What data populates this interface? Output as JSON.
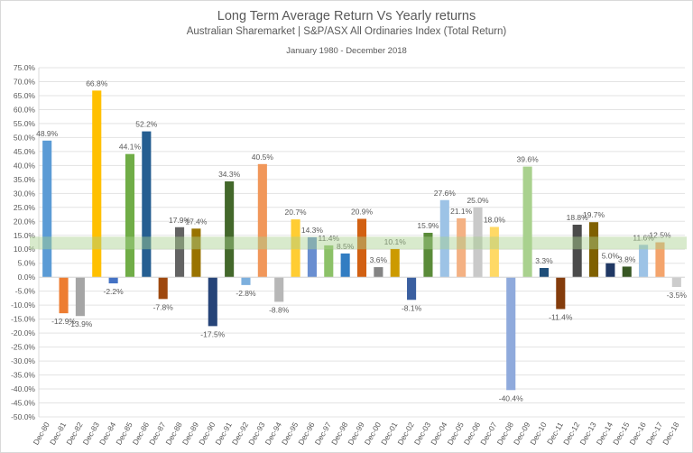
{
  "chart_data": {
    "type": "bar",
    "title": "Long Term Average Return Vs Yearly returns",
    "subtitle": "Australian Sharemarket  | S&P/ASX  All  Ordinaries Index (Total Return)",
    "period": "January 1980 - December  2018",
    "xlabel": "",
    "ylabel": "",
    "ylim": [
      -50,
      75
    ],
    "ytick_step": 5,
    "ytick_format": "percent-1dp",
    "grid": true,
    "legend": "none",
    "highlight_band": {
      "from": 10,
      "to": 14.5,
      "color": "#A9D18E"
    },
    "categories": [
      "Dec-80",
      "Dec-81",
      "Dec-82",
      "Dec-83",
      "Dec-84",
      "Dec-85",
      "Dec-86",
      "Dec-87",
      "Dec-88",
      "Dec-89",
      "Dec-90",
      "Dec-91",
      "Dec-92",
      "Dec-93",
      "Dec-94",
      "Dec-95",
      "Dec-96",
      "Dec-97",
      "Dec-98",
      "Dec-99",
      "Dec-00",
      "Dec-01",
      "Dec-02",
      "Dec-03",
      "Dec-04",
      "Dec-05",
      "Dec-06",
      "Dec-07",
      "Dec-08",
      "Dec-09",
      "Dec-10",
      "Dec-11",
      "Dec-12",
      "Dec-13",
      "Dec-14",
      "Dec-15",
      "Dec-16",
      "Dec-17",
      "Dec-18"
    ],
    "values": [
      48.9,
      -12.9,
      -13.9,
      66.8,
      -2.2,
      44.1,
      52.2,
      -7.8,
      17.9,
      17.4,
      -17.5,
      34.3,
      -2.8,
      40.5,
      -8.8,
      20.7,
      14.3,
      11.4,
      8.5,
      20.9,
      3.6,
      10.1,
      -8.1,
      15.9,
      27.6,
      21.1,
      25.0,
      18.0,
      -40.4,
      39.6,
      3.3,
      -11.4,
      18.8,
      19.7,
      5.0,
      3.8,
      11.6,
      12.5,
      -3.5
    ],
    "colors": [
      "#5B9BD5",
      "#ED7D31",
      "#A5A5A5",
      "#FFC000",
      "#4472C4",
      "#70AD47",
      "#255E91",
      "#9E480E",
      "#636363",
      "#997300",
      "#264478",
      "#43682B",
      "#7CAFDD",
      "#F1975A",
      "#B7B7B7",
      "#FFCD33",
      "#698ED0",
      "#8CC168",
      "#327DC2",
      "#D26012",
      "#848484",
      "#CC9A00",
      "#3A5FA0",
      "#5A8B39",
      "#9DC3E6",
      "#F4B183",
      "#C9C9C9",
      "#FFD966",
      "#8FAADC",
      "#A9D18E",
      "#1F4E79",
      "#843C0C",
      "#4B4B4B",
      "#7F6000",
      "#203864",
      "#375623",
      "#9DC3E6",
      "#F4A46C",
      "#CCCCCC"
    ]
  }
}
